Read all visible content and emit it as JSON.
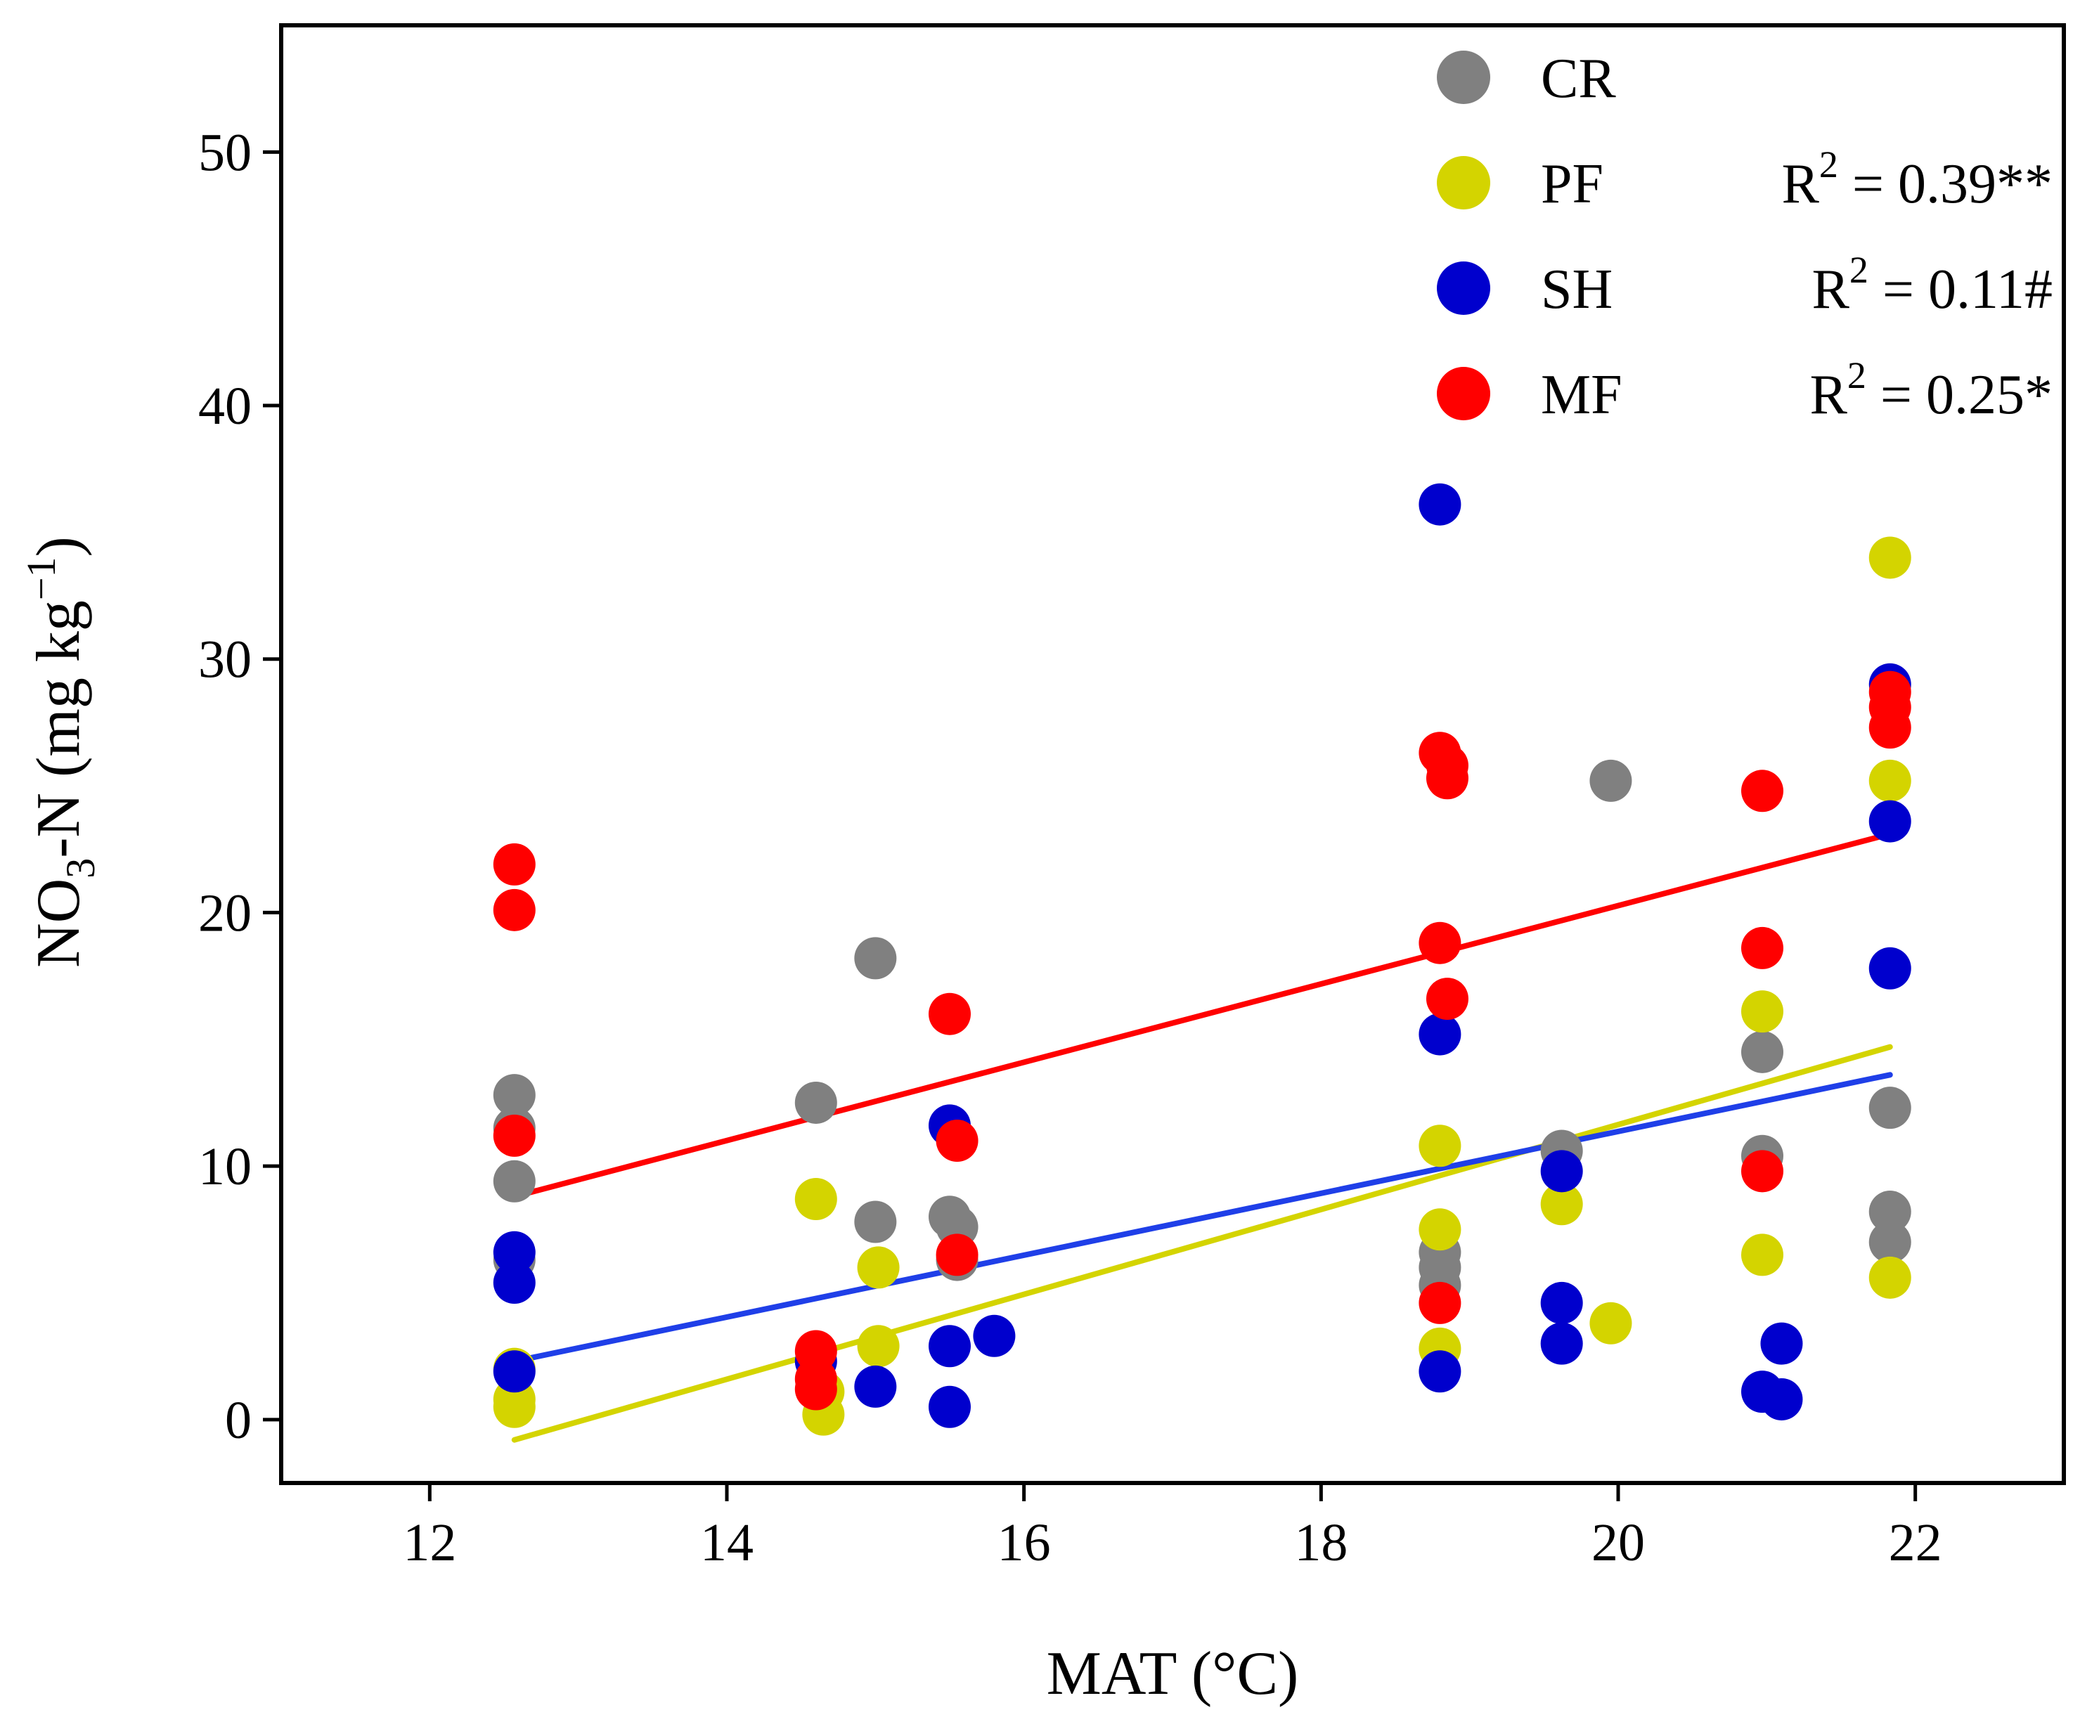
{
  "chart_data": {
    "type": "scatter",
    "title": "",
    "xlabel": "MAT (°C)",
    "ylabel_parts": {
      "pre": "NO",
      "sub": "3",
      "mid": "-N (mg kg",
      "sup": "−1",
      "post": ")"
    },
    "xlim": [
      11.0,
      23.0
    ],
    "ylim": [
      -2.5,
      55.0
    ],
    "xticks": [
      12,
      14,
      16,
      18,
      20,
      22
    ],
    "yticks": [
      0,
      10,
      20,
      30,
      40,
      50
    ],
    "legend_position": "top-right",
    "series": [
      {
        "name": "CR",
        "color": "#808080",
        "points": [
          [
            12.57,
            12.8
          ],
          [
            12.57,
            11.5
          ],
          [
            12.57,
            9.4
          ],
          [
            12.57,
            6.3
          ],
          [
            14.6,
            12.5
          ],
          [
            15.0,
            18.2
          ],
          [
            15.0,
            7.8
          ],
          [
            15.5,
            8.0
          ],
          [
            15.55,
            7.6
          ],
          [
            15.55,
            6.3
          ],
          [
            18.8,
            6.6
          ],
          [
            18.8,
            6.0
          ],
          [
            18.8,
            5.3
          ],
          [
            19.62,
            10.6
          ],
          [
            19.95,
            25.2
          ],
          [
            20.97,
            14.5
          ],
          [
            20.97,
            10.4
          ],
          [
            21.83,
            12.3
          ],
          [
            21.83,
            8.2
          ],
          [
            21.83,
            7.0
          ]
        ]
      },
      {
        "name": "PF",
        "color": "#D4D400",
        "r2": "R",
        "r2_sup": "2",
        "r2_text": " = 0.39**",
        "points": [
          [
            12.57,
            2.0
          ],
          [
            12.57,
            0.8
          ],
          [
            12.57,
            0.5
          ],
          [
            14.6,
            8.7
          ],
          [
            14.65,
            1.1
          ],
          [
            14.65,
            0.2
          ],
          [
            15.02,
            6.0
          ],
          [
            15.02,
            2.9
          ],
          [
            18.8,
            10.8
          ],
          [
            18.8,
            7.5
          ],
          [
            18.8,
            2.8
          ],
          [
            19.62,
            8.5
          ],
          [
            19.95,
            3.8
          ],
          [
            20.97,
            16.1
          ],
          [
            20.97,
            6.5
          ],
          [
            21.83,
            34.0
          ],
          [
            21.83,
            25.2
          ],
          [
            21.83,
            5.6
          ]
        ],
        "fit": {
          "x0": 12.57,
          "y0": -0.8,
          "x1": 21.83,
          "y1": 14.7
        }
      },
      {
        "name": "SH",
        "color": "#0000CD",
        "r2": "R",
        "r2_sup": "2",
        "r2_text": " = 0.11#",
        "points": [
          [
            12.57,
            6.6
          ],
          [
            12.57,
            5.4
          ],
          [
            12.57,
            1.9
          ],
          [
            14.6,
            2.3
          ],
          [
            15.0,
            1.3
          ],
          [
            15.5,
            11.6
          ],
          [
            15.5,
            2.9
          ],
          [
            15.5,
            0.5
          ],
          [
            15.8,
            3.3
          ],
          [
            18.8,
            36.1
          ],
          [
            18.8,
            15.2
          ],
          [
            18.8,
            1.9
          ],
          [
            19.62,
            9.8
          ],
          [
            19.62,
            4.6
          ],
          [
            19.62,
            3.0
          ],
          [
            20.97,
            1.1
          ],
          [
            21.1,
            3.0
          ],
          [
            21.1,
            0.8
          ],
          [
            21.83,
            29.0
          ],
          [
            21.83,
            23.6
          ],
          [
            21.83,
            17.8
          ]
        ],
        "fit": {
          "x0": 12.57,
          "y0": 2.3,
          "x1": 21.83,
          "y1": 13.6
        }
      },
      {
        "name": "MF",
        "color": "#FF0000",
        "r2": "R",
        "r2_sup": "2",
        "r2_text": " = 0.25*",
        "points": [
          [
            12.57,
            21.9
          ],
          [
            12.57,
            20.1
          ],
          [
            12.57,
            11.2
          ],
          [
            14.6,
            2.7
          ],
          [
            14.6,
            1.6
          ],
          [
            14.6,
            1.2
          ],
          [
            15.5,
            16.0
          ],
          [
            15.55,
            11.0
          ],
          [
            15.55,
            6.5
          ],
          [
            18.8,
            26.3
          ],
          [
            18.85,
            25.8
          ],
          [
            18.85,
            25.3
          ],
          [
            18.8,
            18.8
          ],
          [
            18.85,
            16.6
          ],
          [
            18.8,
            4.6
          ],
          [
            20.97,
            24.8
          ],
          [
            20.97,
            18.6
          ],
          [
            20.97,
            9.8
          ],
          [
            21.83,
            28.7
          ],
          [
            21.83,
            28.1
          ],
          [
            21.83,
            27.3
          ]
        ],
        "fit": {
          "x0": 12.57,
          "y0": 8.8,
          "x1": 21.83,
          "y1": 23.1
        }
      }
    ]
  }
}
